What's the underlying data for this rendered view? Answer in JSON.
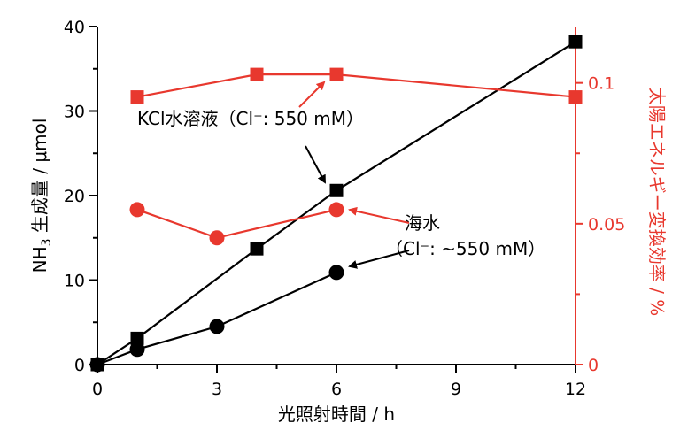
{
  "chart_data": {
    "type": "line",
    "xlabel": "光照射時間 / h",
    "ylabel_left": {
      "main": "NH",
      "sub": "3",
      "rest": " 生成量 / μmol"
    },
    "ylabel_right": "太陽エネルギー変換効率 / %",
    "xlim": [
      0,
      12
    ],
    "ylim_left": [
      0,
      40
    ],
    "ylim_right": [
      0,
      0.12
    ],
    "x_ticks": [
      "0",
      "3",
      "6",
      "9",
      "12"
    ],
    "y_left_ticks": [
      "0",
      "10",
      "20",
      "30",
      "40"
    ],
    "y_right_ticks": [
      "0",
      "0.05",
      "0.1"
    ],
    "colors": {
      "black": "#000000",
      "red": "#e8382e"
    },
    "series": [
      {
        "axis": "left",
        "marker": "square",
        "color": "#000000",
        "x": [
          0,
          1,
          4,
          6,
          12
        ],
        "y": [
          0,
          3.1,
          13.7,
          20.6,
          38.2
        ]
      },
      {
        "axis": "left",
        "marker": "circle",
        "color": "#000000",
        "x": [
          0,
          1,
          3,
          6
        ],
        "y": [
          0,
          1.8,
          4.5,
          10.9
        ]
      },
      {
        "axis": "right",
        "marker": "square",
        "color": "#e8382e",
        "x": [
          1,
          4,
          6,
          12
        ],
        "y": [
          0.095,
          0.103,
          0.103,
          0.095
        ]
      },
      {
        "axis": "right",
        "marker": "circle",
        "color": "#e8382e",
        "x": [
          1,
          3,
          6
        ],
        "y": [
          0.055,
          0.045,
          0.055
        ]
      }
    ],
    "annotations": {
      "kcl": "KCl水溶液（Cl⁻: 550 mM）",
      "sea_line1": "海水",
      "sea_line2": "（Cl⁻: ~550 mM）"
    }
  }
}
